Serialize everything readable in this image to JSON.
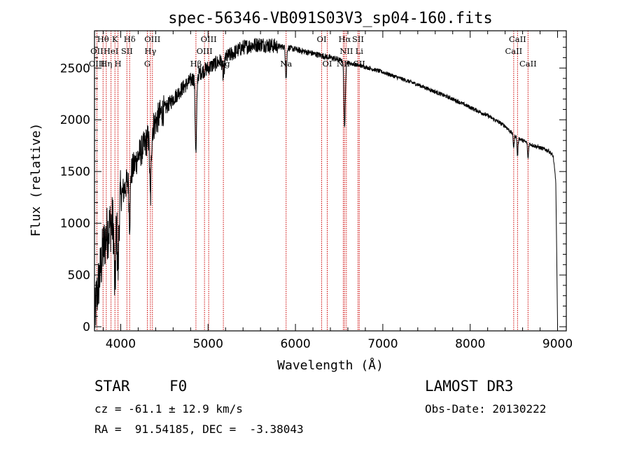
{
  "chart_data": {
    "type": "line",
    "title": "spec-56346-VB091S03V3_sp04-160.fits",
    "xlabel": "Wavelength (Å)",
    "ylabel": "Flux (relative)",
    "xlim": [
      3700,
      9100
    ],
    "ylim": [
      -40,
      2860
    ],
    "xticks": [
      4000,
      5000,
      6000,
      7000,
      8000,
      9000
    ],
    "yticks": [
      0,
      500,
      1000,
      1500,
      2000,
      2500
    ],
    "spectrum_anchors": {
      "x": [
        3700,
        3720,
        3760,
        3800,
        3840,
        3880,
        3900,
        3930,
        3970,
        4000,
        4050,
        4100,
        4150,
        4200,
        4250,
        4300,
        4350,
        4400,
        4450,
        4500,
        4600,
        4700,
        4800,
        4900,
        5000,
        5100,
        5200,
        5300,
        5400,
        5500,
        5600,
        5700,
        5800,
        5900,
        6000,
        6100,
        6200,
        6300,
        6400,
        6500,
        6600,
        6700,
        6800,
        7000,
        7200,
        7400,
        7600,
        7800,
        8000,
        8200,
        8400,
        8500,
        8600,
        8700,
        8800,
        8900,
        8950,
        8980,
        9000
      ],
      "y": [
        20,
        250,
        500,
        750,
        900,
        980,
        1000,
        1050,
        1150,
        1250,
        1350,
        1450,
        1550,
        1650,
        1720,
        1800,
        1900,
        1980,
        2050,
        2100,
        2200,
        2300,
        2380,
        2450,
        2500,
        2550,
        2600,
        2650,
        2700,
        2720,
        2730,
        2720,
        2710,
        2700,
        2680,
        2660,
        2640,
        2620,
        2600,
        2580,
        2550,
        2530,
        2510,
        2460,
        2400,
        2340,
        2270,
        2200,
        2120,
        2040,
        1940,
        1850,
        1800,
        1760,
        1730,
        1700,
        1650,
        1400,
        20
      ]
    },
    "absorption_features": [
      {
        "x": 3934,
        "depth": 700,
        "width": 12
      },
      {
        "x": 3969,
        "depth": 600,
        "width": 12
      },
      {
        "x": 4102,
        "depth": 450,
        "width": 10
      },
      {
        "x": 4340,
        "depth": 650,
        "width": 12
      },
      {
        "x": 4861,
        "depth": 750,
        "width": 12
      },
      {
        "x": 5175,
        "depth": 180,
        "width": 14
      },
      {
        "x": 5893,
        "depth": 300,
        "width": 10
      },
      {
        "x": 6563,
        "depth": 650,
        "width": 11
      },
      {
        "x": 8498,
        "depth": 120,
        "width": 8
      },
      {
        "x": 8542,
        "depth": 180,
        "width": 8
      },
      {
        "x": 8662,
        "depth": 150,
        "width": 8
      }
    ],
    "line_markers": [
      3727,
      3798,
      3835,
      3889,
      3934,
      3969,
      4071,
      4102,
      4305,
      4340,
      4363,
      4861,
      4959,
      5007,
      5175,
      5893,
      6300,
      6364,
      6548,
      6563,
      6583,
      6716,
      6731,
      8498,
      8542,
      8662
    ],
    "line_labels": [
      {
        "text": "Hθ",
        "x": 3798,
        "row": 0
      },
      {
        "text": "K",
        "x": 3934,
        "row": 0
      },
      {
        "text": "Hδ",
        "x": 4102,
        "row": 0
      },
      {
        "text": "OIII",
        "x": 4363,
        "row": 0
      },
      {
        "text": "OIII",
        "x": 5007,
        "row": 0
      },
      {
        "text": "OI",
        "x": 6300,
        "row": 0
      },
      {
        "text": "Hα",
        "x": 6563,
        "row": 0
      },
      {
        "text": "SII",
        "x": 6716,
        "row": 0
      },
      {
        "text": "CaII",
        "x": 8542,
        "row": 0
      },
      {
        "text": "OII",
        "x": 3727,
        "row": 1
      },
      {
        "text": "HeI",
        "x": 3889,
        "row": 1
      },
      {
        "text": "SII",
        "x": 4071,
        "row": 1
      },
      {
        "text": "Hγ",
        "x": 4340,
        "row": 1
      },
      {
        "text": "OIII",
        "x": 4959,
        "row": 1
      },
      {
        "text": "NII",
        "x": 6583,
        "row": 1
      },
      {
        "text": "Li",
        "x": 6731,
        "row": 1
      },
      {
        "text": "CaII",
        "x": 8498,
        "row": 1
      },
      {
        "text": "OIII",
        "x": 3727,
        "row": 2
      },
      {
        "text": "Hη",
        "x": 3835,
        "row": 2
      },
      {
        "text": "H",
        "x": 3969,
        "row": 2
      },
      {
        "text": "G",
        "x": 4305,
        "row": 2
      },
      {
        "text": "Hβ",
        "x": 4861,
        "row": 2
      },
      {
        "text": "Mg",
        "x": 5175,
        "row": 2
      },
      {
        "text": "Na",
        "x": 5893,
        "row": 2
      },
      {
        "text": "OI",
        "x": 6364,
        "row": 2
      },
      {
        "text": "NII",
        "x": 6548,
        "row": 2
      },
      {
        "text": "SII",
        "x": 6731,
        "row": 2
      },
      {
        "text": "CaII",
        "x": 8662,
        "row": 2
      }
    ]
  },
  "info": {
    "object_class": "STAR",
    "subclass": "F0",
    "survey": "LAMOST DR3",
    "redshift_text": "cz = -61.1 ± 12.9 km/s",
    "obs_date": "Obs-Date: 20130222",
    "coords_text": "RA =  91.54185, DEC =  -3.38043"
  },
  "colors": {
    "marker": "#cc0000",
    "spectrum": "#000000",
    "axes": "#000000"
  }
}
